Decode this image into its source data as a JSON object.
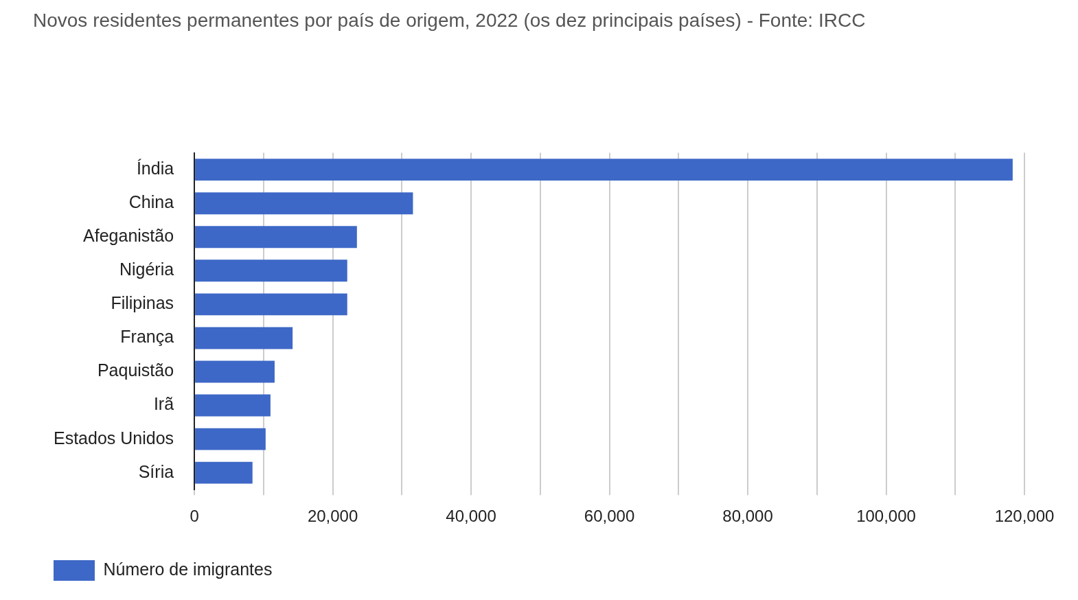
{
  "chart_data": {
    "type": "bar",
    "orientation": "horizontal",
    "title": "Novos residentes permanentes por país de origem, 2022 (os dez principais países) - Fonte: IRCC",
    "categories": [
      "Índia",
      "China",
      "Afeganistão",
      "Nigéria",
      "Filipinas",
      "França",
      "Paquistão",
      "Irã",
      "Estados Unidos",
      "Síria"
    ],
    "series": [
      {
        "name": "Número de imigrantes",
        "color": "#3e68c7",
        "values": [
          118300,
          31600,
          23500,
          22100,
          22100,
          14200,
          11600,
          11000,
          10300,
          8400
        ]
      }
    ],
    "xlim": [
      0,
      120000
    ],
    "xticks": [
      0,
      {
        "value": 10000,
        "label": null
      },
      {
        "value": 20000,
        "label": "20,000"
      },
      {
        "value": 30000,
        "label": null
      },
      {
        "value": 40000,
        "label": "40,000"
      },
      {
        "value": 50000,
        "label": null
      },
      {
        "value": 60000,
        "label": "60,000"
      },
      {
        "value": 70000,
        "label": null
      },
      {
        "value": 80000,
        "label": "80,000"
      },
      {
        "value": 90000,
        "label": null
      },
      {
        "value": 100000,
        "label": "100,000"
      },
      {
        "value": 110000,
        "label": null
      },
      {
        "value": 120000,
        "label": "120,000"
      }
    ],
    "grid": "x",
    "legend": "bottom left"
  }
}
